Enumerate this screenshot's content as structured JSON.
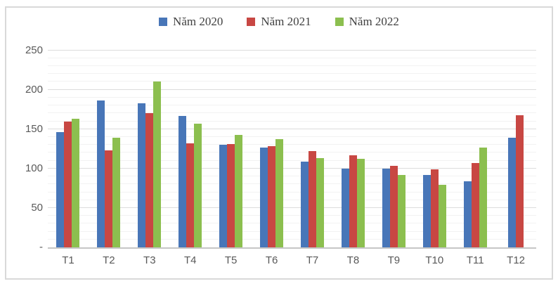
{
  "chart_data": {
    "type": "bar",
    "title": "",
    "categories": [
      "T1",
      "T2",
      "T3",
      "T4",
      "T5",
      "T6",
      "T7",
      "T8",
      "T9",
      "T10",
      "T11",
      "T12"
    ],
    "series": [
      {
        "name": "Năm 2020",
        "color": "#4876B8",
        "values": [
          146,
          186,
          183,
          167,
          130,
          127,
          109,
          100,
          100,
          92,
          84,
          139
        ]
      },
      {
        "name": "Năm 2021",
        "color": "#C84743",
        "values": [
          160,
          123,
          170,
          132,
          131,
          128,
          122,
          117,
          103,
          99,
          107,
          168
        ]
      },
      {
        "name": "Năm 2022",
        "color": "#8CBF4F",
        "values": [
          163,
          139,
          210,
          157,
          143,
          137,
          113,
          112,
          92,
          79,
          127,
          null
        ]
      }
    ],
    "y_axis": {
      "scale_max": 255,
      "gridline_max": 250,
      "tick_interval": 50,
      "minor_interval": 10,
      "ticks": [
        {
          "value": 0,
          "label": "-"
        },
        {
          "value": 50,
          "label": "50"
        },
        {
          "value": 100,
          "label": "100"
        },
        {
          "value": 150,
          "label": "150"
        },
        {
          "value": 200,
          "label": "200"
        },
        {
          "value": 250,
          "label": "250"
        }
      ]
    },
    "legend_position": "top",
    "grid": true
  }
}
